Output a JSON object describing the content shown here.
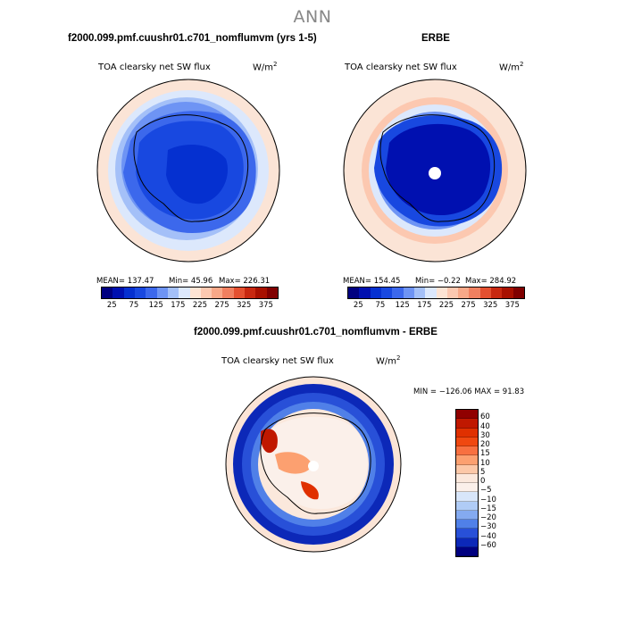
{
  "figure_title": "ANN",
  "panels": {
    "model": {
      "case_title": "f2000.099.pmf.cuushr01.c701_nomflumvm (yrs 1-5)",
      "variable": "TOA clearsky net SW flux",
      "units_base": "W/m",
      "units_exp": "2",
      "stats": {
        "mean": "MEAN= 137.47",
        "min": "Min=  45.96",
        "max": "Max= 226.31"
      }
    },
    "obs": {
      "case_title": "ERBE",
      "variable": "TOA clearsky net SW flux",
      "units_base": "W/m",
      "units_exp": "2",
      "stats": {
        "mean": "MEAN= 154.45",
        "min": "Min=  −0.22",
        "max": "Max= 284.92"
      }
    },
    "diff": {
      "case_title": "f2000.099.pmf.cuushr01.c701_nomflumvm - ERBE",
      "variable": "TOA clearsky net SW flux",
      "units_base": "W/m",
      "units_exp": "2",
      "stats": {
        "minmax": "MIN = −126.06 MAX =  91.83"
      }
    }
  },
  "colorbar_abs": {
    "ticks": [
      "25",
      "75",
      "125",
      "175",
      "225",
      "275",
      "325",
      "375"
    ],
    "colors": [
      "#000080",
      "#0010b0",
      "#0530d0",
      "#1848e0",
      "#3c68ec",
      "#6e94f4",
      "#a4c0f8",
      "#dce8fc",
      "#fde4d4",
      "#fcc8b0",
      "#f8a888",
      "#f08060",
      "#e45030",
      "#c82810",
      "#a81000",
      "#800000"
    ]
  },
  "colorbar_diff": {
    "labels": [
      "60",
      "40",
      "30",
      "20",
      "15",
      "10",
      "5",
      "0",
      "−5",
      "−10",
      "−15",
      "−20",
      "−30",
      "−40",
      "−60"
    ],
    "colors": [
      "#900000",
      "#c01800",
      "#e03000",
      "#f04810",
      "#f87040",
      "#fca070",
      "#fcc8a8",
      "#fbe8dc",
      "#fbf0ea",
      "#d8e6fa",
      "#b0ccf6",
      "#84aaf0",
      "#5080e8",
      "#2850d8",
      "#0c28b8",
      "#000080"
    ]
  },
  "colors": {
    "land_outline": "#000000",
    "ocean_background": "#fbe4d6"
  }
}
